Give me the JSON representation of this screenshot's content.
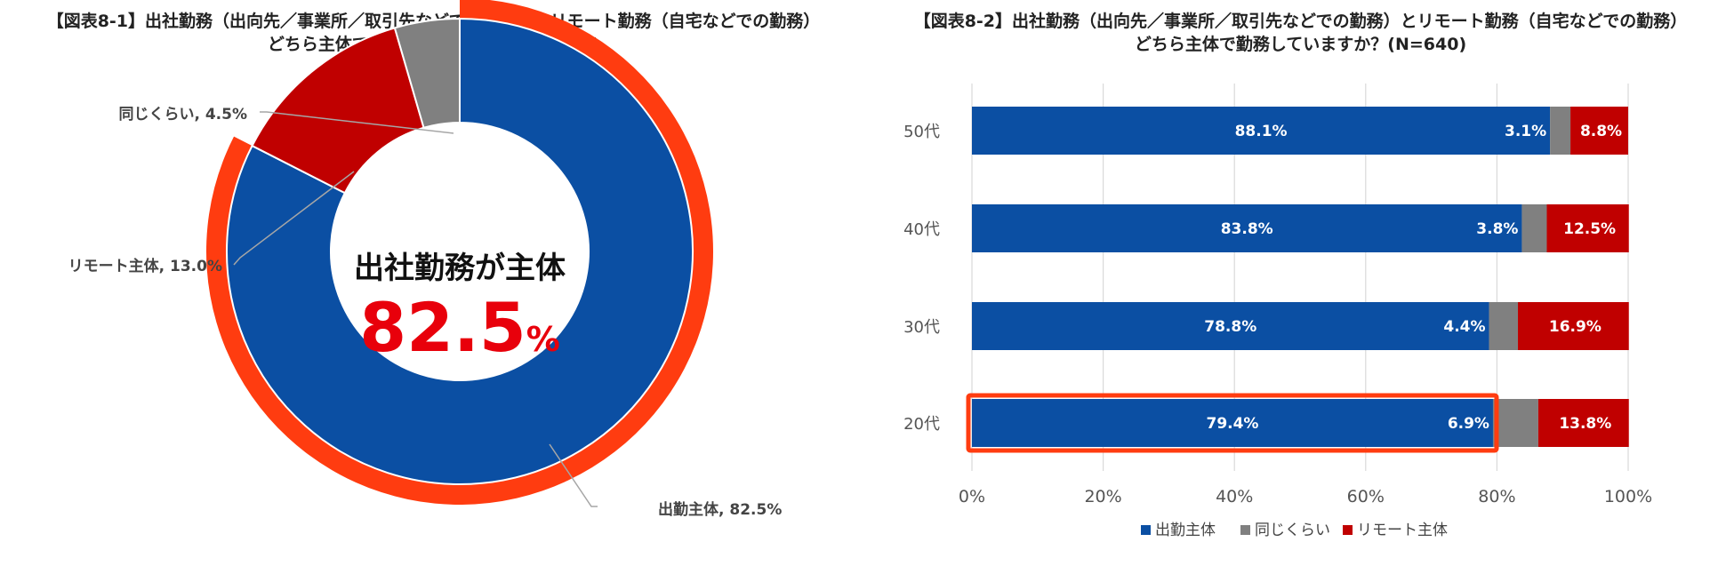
{
  "chart_data": [
    {
      "type": "pie",
      "variant": "donut",
      "title_line1": "【図表8-1】出社勤務（出向先／事業所／取引先などでの勤務）とリモート勤務（自宅などでの勤務）",
      "title_line2": "どちら主体で勤務していますか？(N=640)",
      "slices": [
        {
          "label": "出勤主体, 82.5%",
          "value": 82.5,
          "color": "#0b4fa3"
        },
        {
          "label": "リモート主体, 13.0%",
          "value": 13.0,
          "color": "#c00000"
        },
        {
          "label": "同じくらい, 4.5%",
          "value": 4.5,
          "color": "#808080"
        }
      ],
      "highlight_color": "#ff3c10",
      "center_text": "出社勤務が主体",
      "center_value": "82.5",
      "center_unit": "%",
      "center_value_color": "#e8000b"
    },
    {
      "type": "bar",
      "variant": "stacked-horizontal-100",
      "title_line1": "【図表8-2】出社勤務（出向先／事業所／取引先などでの勤務）とリモート勤務（自宅などでの勤務）",
      "title_line2": "どちら主体で勤務していますか？(N=640)",
      "categories": [
        "50代",
        "40代",
        "30代",
        "20代"
      ],
      "series": [
        {
          "name": "出勤主体",
          "values": [
            88.1,
            83.8,
            78.8,
            79.4
          ],
          "color": "#0b4fa3"
        },
        {
          "name": "同じくらい",
          "values": [
            3.1,
            3.8,
            4.4,
            6.9
          ],
          "color": "#808080"
        },
        {
          "name": "リモート主体",
          "values": [
            8.8,
            12.5,
            16.9,
            13.8
          ],
          "color": "#c00000"
        }
      ],
      "xlim": [
        0,
        100
      ],
      "xticks": [
        "0%",
        "20%",
        "40%",
        "60%",
        "80%",
        "100%"
      ],
      "grid": true,
      "legend_position": "bottom",
      "highlight_category": "20代",
      "highlight_color": "#ff3c10"
    }
  ]
}
